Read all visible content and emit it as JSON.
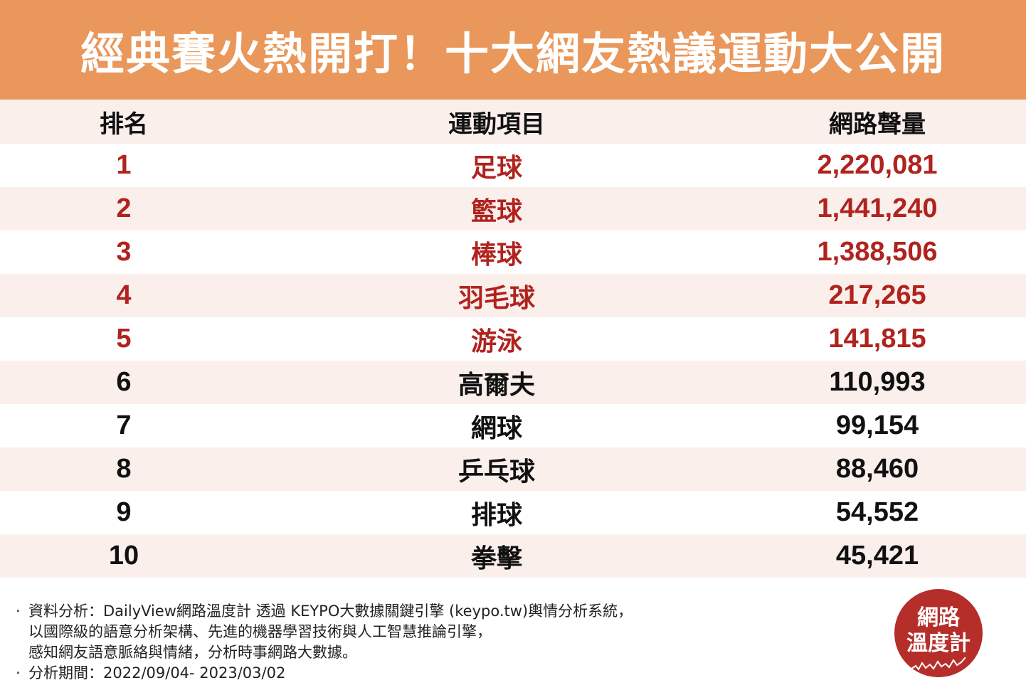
{
  "title": "經典賽火熱開打！十大網友熱議運動大公開",
  "table": {
    "headers": [
      "排名",
      "運動項目",
      "網路聲量"
    ],
    "rows": [
      {
        "rank": "1",
        "sport": "足球",
        "volume": "2,220,081",
        "highlight": true
      },
      {
        "rank": "2",
        "sport": "籃球",
        "volume": "1,441,240",
        "highlight": true
      },
      {
        "rank": "3",
        "sport": "棒球",
        "volume": "1,388,506",
        "highlight": true
      },
      {
        "rank": "4",
        "sport": "羽毛球",
        "volume": "217,265",
        "highlight": true
      },
      {
        "rank": "5",
        "sport": "游泳",
        "volume": "141,815",
        "highlight": true
      },
      {
        "rank": "6",
        "sport": "高爾夫",
        "volume": "110,993",
        "highlight": false
      },
      {
        "rank": "7",
        "sport": "網球",
        "volume": "99,154",
        "highlight": false
      },
      {
        "rank": "8",
        "sport": "乒乓球",
        "volume": "88,460",
        "highlight": false
      },
      {
        "rank": "9",
        "sport": "排球",
        "volume": "54,552",
        "highlight": false
      },
      {
        "rank": "10",
        "sport": "拳擊",
        "volume": "45,421",
        "highlight": false
      }
    ]
  },
  "notes": {
    "bullet": "·",
    "source_line1": "資料分析：DailyView網路溫度計 透過 KEYPO大數據關鍵引擎 (keypo.tw)輿情分析系統，",
    "source_line2": "以國際級的語意分析架構、先進的機器學習技術與人工智慧推論引擎，",
    "source_line3": "感知網友語意脈絡與情緒，分析時事網路大數據。",
    "period": "分析期間：2022/09/04- 2023/03/02"
  },
  "logo": {
    "line1": "網路",
    "line2": "溫度計"
  },
  "colors": {
    "header_bg": "#e9975a",
    "row_shade": "#fbefec",
    "highlight": "#b0231e",
    "logo_bg": "#b52e2a"
  }
}
